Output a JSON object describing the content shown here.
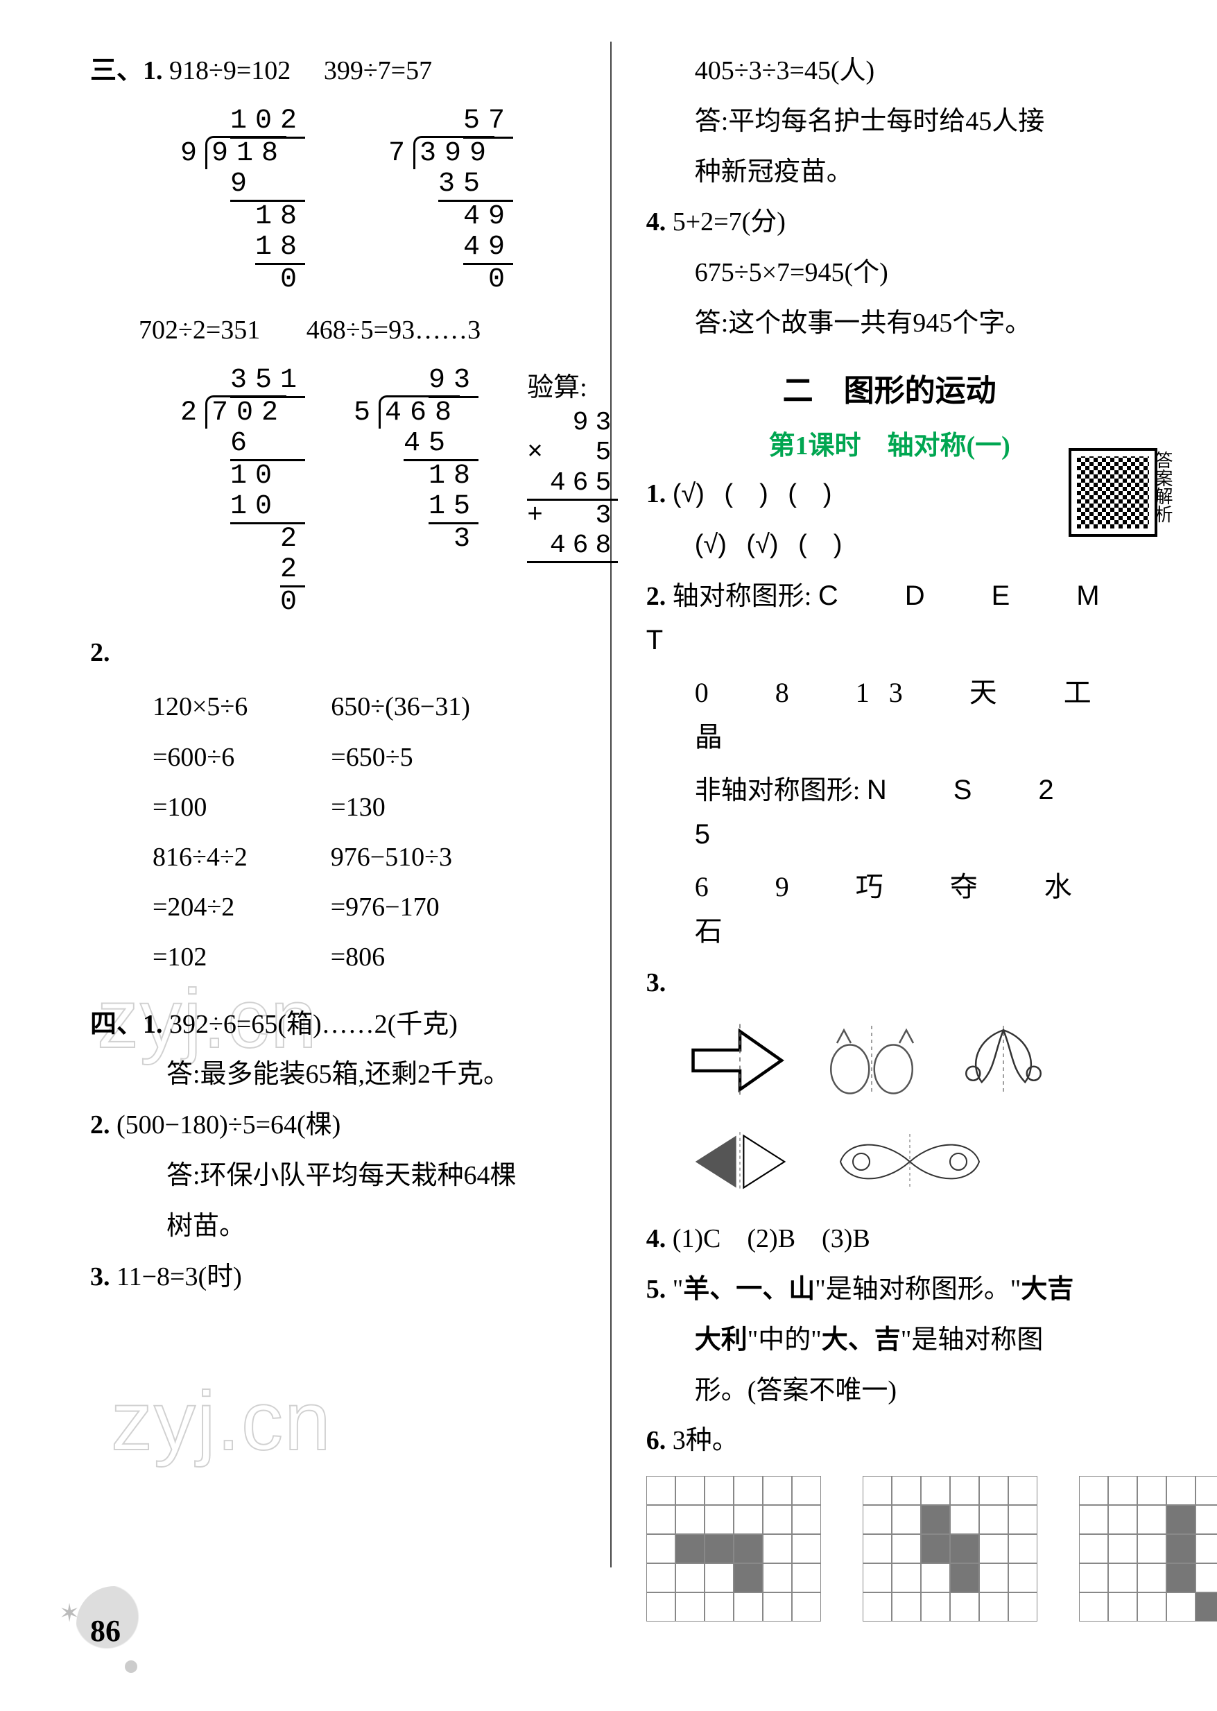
{
  "colors": {
    "text": "#000000",
    "background": "#ffffff",
    "divider": "#444444",
    "lesson_title": "#00a651",
    "watermark": "rgba(0,0,0,0.12)",
    "grid_border": "#888888",
    "grid_fill": "#777777",
    "page_badge": "#dddddd"
  },
  "typography": {
    "base_family": "SimSun, 宋体, serif",
    "base_size_pt": 28,
    "mono_family": "Courier New, monospace",
    "section_title_size_pt": 33,
    "lesson_title_size_pt": 28
  },
  "page_number": "86",
  "watermarks": [
    "zyj.cn",
    "zyj.cn"
  ],
  "left": {
    "section3": {
      "label": "三、1.",
      "eq_row1": [
        "918÷9=102",
        "399÷7=57"
      ],
      "longdiv1": {
        "divisor": "9",
        "dividend": "918",
        "quotient": "102",
        "steps": [
          "9",
          "18",
          "18",
          "0"
        ]
      },
      "longdiv2": {
        "divisor": "7",
        "dividend": "399",
        "quotient": "57",
        "steps": [
          "35",
          "49",
          "49",
          "0"
        ]
      },
      "eq_row2": [
        "702÷2=351",
        "468÷5=93……3"
      ],
      "longdiv3": {
        "divisor": "2",
        "dividend": "702",
        "quotient": "351",
        "steps": [
          "6",
          "10",
          "10",
          "2",
          "2",
          "0"
        ]
      },
      "longdiv4": {
        "divisor": "5",
        "dividend": "468",
        "quotient": "93",
        "steps": [
          "45",
          "18",
          "15",
          "3"
        ]
      },
      "verify_label": "验算:",
      "verify": {
        "a": "93",
        "b": "5",
        "product": "465",
        "plus": "3",
        "sum": "468"
      },
      "item2_label": "2.",
      "calc1": [
        "120×5÷6",
        "=600÷6",
        "=100"
      ],
      "calc2": [
        "650÷(36−31)",
        "=650÷5",
        "=130"
      ],
      "calc3": [
        "816÷4÷2",
        "=204÷2",
        "=102"
      ],
      "calc4": [
        "976−510÷3",
        "=976−170",
        "=806"
      ]
    },
    "section4": {
      "label": "四、1.",
      "q1_eq": "392÷6=65(箱)……2(千克)",
      "q1_ans": "答:最多能装65箱,还剩2千克。",
      "q2_label": "2.",
      "q2_eq": "(500−180)÷5=64(棵)",
      "q2_ans_a": "答:环保小队平均每天栽种64棵",
      "q2_ans_b": "树苗。",
      "q3_label": "3.",
      "q3_eq": "11−8=3(时)"
    }
  },
  "right": {
    "q3_cont": {
      "eq": "405÷3÷3=45(人)",
      "ans_a": "答:平均每名护士每时给45人接",
      "ans_b": "种新冠疫苗。"
    },
    "q4": {
      "label": "4.",
      "eq1": "5+2=7(分)",
      "eq2": "675÷5×7=945(个)",
      "ans": "答:这个故事一共有945个字。"
    },
    "chapter_title": "二　图形的运动",
    "lesson_title": "第1课时　轴对称(一)",
    "qr_label": "答案解析",
    "q1": {
      "label": "1.",
      "row1": [
        "(√)",
        "(　)",
        "(　)"
      ],
      "row2": [
        "(√)",
        "(√)",
        "(　)"
      ]
    },
    "q2": {
      "label": "2.",
      "sym_label": "轴对称图形:",
      "sym_letters": "C　D　E　M　T",
      "sym_chars": "0　8　13　天　工　晶",
      "nonsym_label": "非轴对称图形:",
      "nonsym_letters": "N　S　2　5",
      "nonsym_chars": "6　9　巧　夺　水　石"
    },
    "q3_label": "3.",
    "q3_shapes": [
      "arrow",
      "cat-pair",
      "ornament",
      "triangle-pair",
      "butterfly-ornament"
    ],
    "q4_ans": {
      "label": "4.",
      "text": "(1)C　(2)B　(3)B"
    },
    "q5": {
      "label": "5.",
      "line1": "\"羊、一、山\"是轴对称图形。\"大吉",
      "line2": "大利\"中的\"大、吉\"是轴对称图",
      "line3": "形。(答案不唯一)"
    },
    "q6": {
      "label": "6.",
      "text": "3种。"
    },
    "grids": {
      "cols": 6,
      "rows": 5,
      "g1_filled": [
        [
          2,
          1
        ],
        [
          2,
          2
        ],
        [
          2,
          3
        ],
        [
          3,
          3
        ]
      ],
      "g2_filled": [
        [
          1,
          2
        ],
        [
          2,
          2
        ],
        [
          2,
          3
        ],
        [
          3,
          3
        ]
      ],
      "g3_filled": [
        [
          1,
          3
        ],
        [
          2,
          3
        ],
        [
          3,
          3
        ],
        [
          4,
          4
        ]
      ]
    }
  }
}
